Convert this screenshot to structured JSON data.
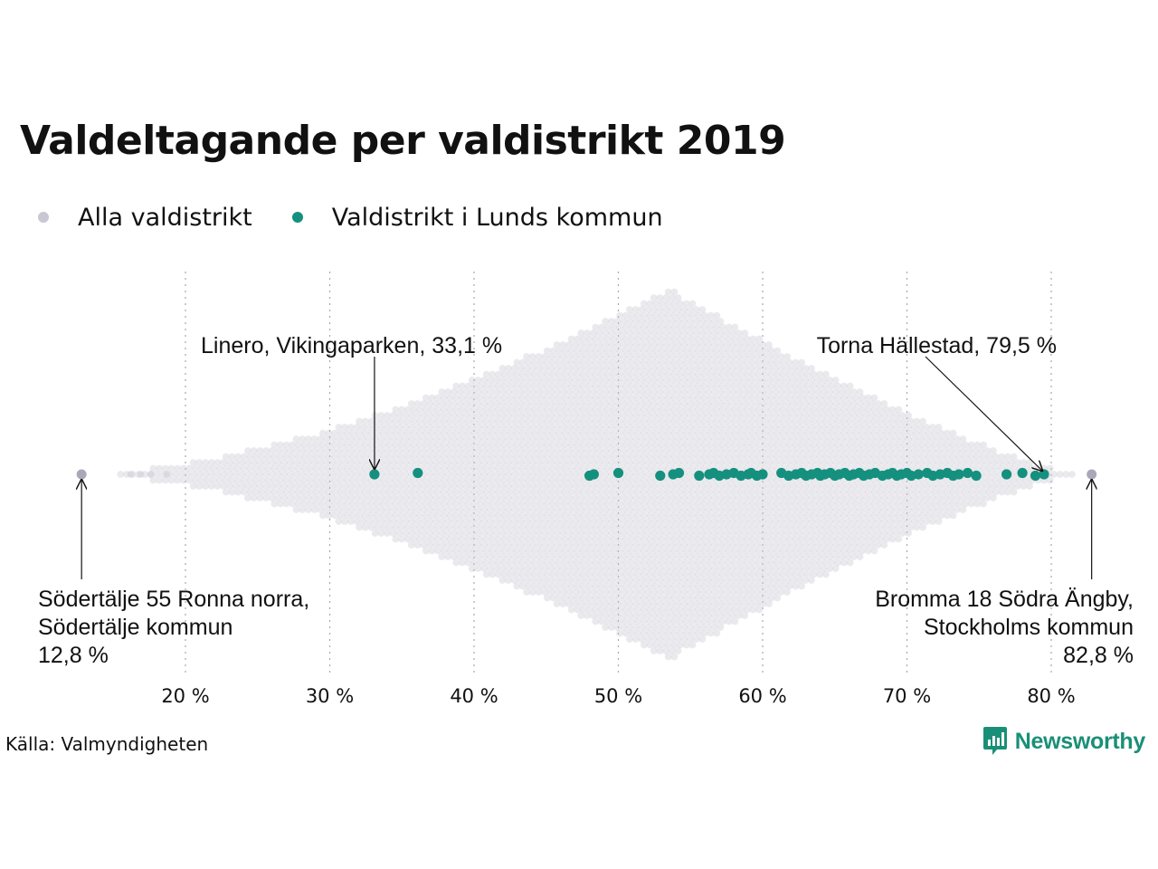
{
  "title": "Valdeltagande per valdistrikt 2019",
  "legend": [
    {
      "label": "Alla valdistrikt",
      "color": "#c8c7d3"
    },
    {
      "label": "Valdistrikt i Lunds kommun",
      "color": "#15907f"
    }
  ],
  "source": "Källa: Valmyndigheten",
  "brand": {
    "name": "Newsworthy",
    "color": "#1a8f78",
    "icon": "bar-chart-speech-bubble-icon"
  },
  "chart_data": {
    "type": "scatter",
    "subtype": "beeswarm",
    "x_axis": {
      "unit": "%",
      "ticks": [
        20,
        30,
        40,
        50,
        60,
        70,
        80
      ],
      "tick_labels": [
        "20 %",
        "30 %",
        "40 %",
        "50 %",
        "60 %",
        "70 %",
        "80 %"
      ],
      "range": [
        12.8,
        82.8
      ],
      "grid": "vertical dotted"
    },
    "all_districts": {
      "name": "Alla valdistrikt",
      "color": "#c8c7d3",
      "min": 12.8,
      "max": 82.8,
      "peak": 53.5
    },
    "lund_districts": {
      "name": "Valdistrikt i Lunds kommun",
      "color": "#15907f",
      "values": [
        33.1,
        36.1,
        48.0,
        48.3,
        50.0,
        52.9,
        53.8,
        54.2,
        55.6,
        56.3,
        56.6,
        57.0,
        57.5,
        58.0,
        58.5,
        59.0,
        59.2,
        59.6,
        60.0,
        61.3,
        61.8,
        62.3,
        62.7,
        63.0,
        63.4,
        63.8,
        64.0,
        64.3,
        64.7,
        65.0,
        65.3,
        65.7,
        66.0,
        66.3,
        66.7,
        67.0,
        67.4,
        67.8,
        68.3,
        68.7,
        69.0,
        69.3,
        69.6,
        70.0,
        70.3,
        70.8,
        71.4,
        71.8,
        72.3,
        72.8,
        73.2,
        73.6,
        74.2,
        74.8,
        76.9,
        78.0,
        78.9,
        79.5
      ]
    },
    "annotations": [
      {
        "text": "Linero, Vikingaparken, 33,1 %",
        "x": 33.1,
        "placement": "above"
      },
      {
        "text": "Torna Hällestad, 79,5 %",
        "x": 79.5,
        "placement": "above"
      },
      {
        "lines": [
          "Södertälje 55 Ronna norra,",
          "Södertälje kommun",
          "12,8 %"
        ],
        "x": 12.8,
        "placement": "below-left"
      },
      {
        "lines": [
          "Bromma 18 Södra Ängby,",
          "Stockholms kommun",
          "82,8 %"
        ],
        "x": 82.8,
        "placement": "below-right"
      }
    ]
  }
}
